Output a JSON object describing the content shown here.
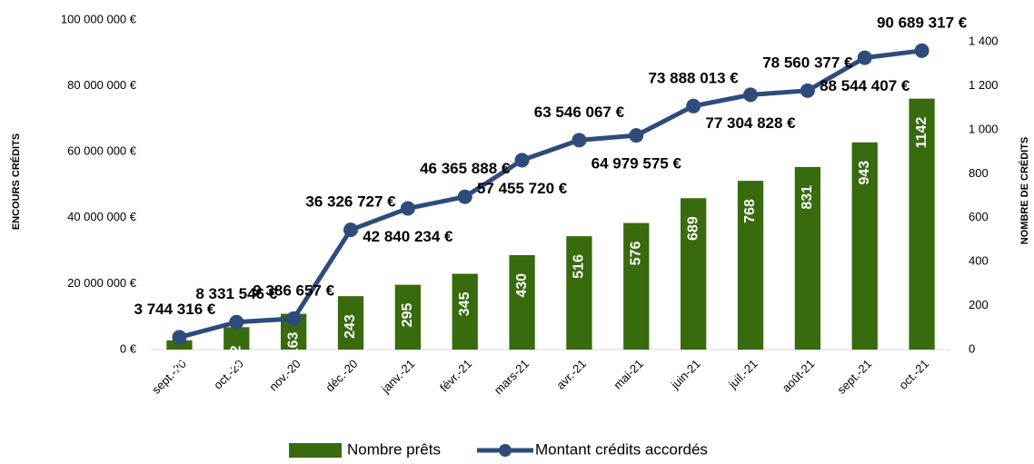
{
  "chart_data": {
    "type": "bar_line",
    "categories": [
      "sept.-20",
      "oct.-20",
      "nov.-20",
      "déc.-20",
      "janv.-21",
      "févr.-21",
      "mars-21",
      "avr.-21",
      "mai-21",
      "juin-21",
      "juil.-21",
      "août-21",
      "sept.-21",
      "oct.-21"
    ],
    "series": [
      {
        "name": "Nombre prêts",
        "type": "bar",
        "axis": "y2",
        "color": "#386a0e",
        "values": [
          42,
          102,
          163,
          243,
          295,
          345,
          430,
          516,
          576,
          689,
          768,
          831,
          943,
          1142
        ]
      },
      {
        "name": "Montant crédits accordés",
        "type": "line",
        "axis": "y",
        "color": "#2f4b7c",
        "values": [
          3744316,
          8331546,
          9386657,
          36326727,
          42840234,
          46365888,
          57455720,
          63546067,
          64979575,
          73888013,
          77304828,
          78560377,
          88544407,
          90689317
        ],
        "value_labels": [
          "3 744 316 €",
          "8 331 546 €",
          "9 386 657 €",
          "36 326 727 €",
          "42 840 234 €",
          "46 365 888 €",
          "57 455 720 €",
          "63 546 067 €",
          "64 979 575 €",
          "73 888 013 €",
          "77 304 828 €",
          "78 560 377 €",
          "88 544 407 €",
          "90 689 317 €"
        ]
      }
    ],
    "ylabel": "ENCOURS CRÉDITS",
    "y2label": "NOMBRE DE CRÉDITS",
    "ylim": [
      0,
      100000000
    ],
    "yticks": [
      {
        "value": 0,
        "label": "0 €"
      },
      {
        "value": 20000000,
        "label": "20 000 000 €"
      },
      {
        "value": 40000000,
        "label": "40 000 000 €"
      },
      {
        "value": 60000000,
        "label": "60 000 000 €"
      },
      {
        "value": 80000000,
        "label": "80 000 000 €"
      },
      {
        "value": 100000000,
        "label": "100 000 000 €"
      }
    ],
    "y2lim": [
      0,
      1500
    ],
    "y2ticks": [
      0,
      200,
      400,
      600,
      800,
      {
        "value": 1000,
        "label": "1 000"
      },
      {
        "value": 1200,
        "label": "1 200"
      },
      {
        "value": 1400,
        "label": "1 400"
      }
    ],
    "grid": false,
    "legend": "bottom"
  }
}
